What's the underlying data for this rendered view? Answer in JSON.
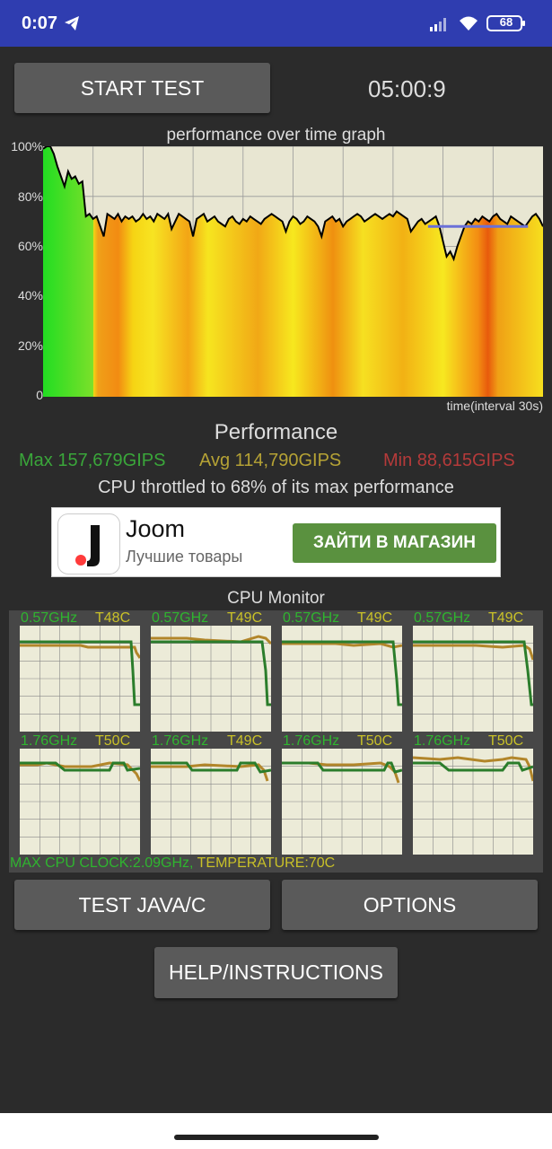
{
  "status_bar": {
    "time": "0:07",
    "battery": "68"
  },
  "buttons": {
    "start_test": "START TEST",
    "test_java_c": "TEST JAVA/C",
    "options": "OPTIONS",
    "help": "HELP/INSTRUCTIONS"
  },
  "timer": "05:00:9",
  "graph": {
    "title": "performance over time graph",
    "y_ticks": [
      "100%",
      "80%",
      "60%",
      "40%",
      "20%",
      "0"
    ],
    "x_label": "time(interval 30s)"
  },
  "chart_data": {
    "type": "line",
    "title": "performance over time graph",
    "xlabel": "time(interval 30s)",
    "ylabel": "",
    "ylim": [
      0,
      100
    ],
    "y_ticks": [
      0,
      20,
      40,
      60,
      80,
      100
    ],
    "grid": true,
    "series": [
      {
        "name": "",
        "values": [
          99,
          100,
          100,
          97,
          92,
          88,
          84,
          90,
          87,
          88,
          85,
          86,
          72,
          73,
          71,
          72,
          68,
          64,
          73,
          72,
          71,
          73,
          70,
          72,
          71,
          72,
          70,
          71,
          73,
          71,
          72,
          70,
          73,
          72,
          71,
          73,
          67,
          70,
          73,
          72,
          71,
          70,
          64,
          71,
          72,
          73,
          70,
          71,
          72,
          70,
          69,
          68,
          71,
          72,
          70,
          69,
          71,
          70,
          72,
          71,
          70,
          69,
          71,
          72,
          73,
          72,
          71,
          70,
          66,
          70,
          72,
          71,
          69,
          70,
          72,
          71,
          70,
          68,
          64,
          70,
          71,
          72,
          70,
          71,
          68,
          70,
          71,
          72,
          73,
          72,
          70,
          71,
          72,
          73,
          72,
          71,
          72,
          73,
          72,
          74,
          73,
          72,
          71,
          66,
          68,
          70,
          71,
          69,
          70,
          71,
          72,
          68,
          62,
          56,
          58,
          55,
          60,
          64,
          68,
          70,
          69,
          71,
          70,
          72,
          71,
          70,
          72,
          73,
          71,
          70,
          69,
          72,
          71,
          70,
          69,
          68,
          70,
          72,
          73,
          71,
          68
        ]
      }
    ],
    "average_line_value": 68
  },
  "performance": {
    "title": "Performance",
    "max": "Max 157,679GIPS",
    "avg": "Avg 114,790GIPS",
    "min": "Min 88,615GIPS",
    "throttle": "CPU throttled to 68% of its max performance"
  },
  "ad": {
    "name": "Joom",
    "subtitle": "Лучшие товары",
    "button": "ЗАЙТИ В МАГАЗИН"
  },
  "cpu_monitor": {
    "title": "CPU Monitor",
    "cores": [
      {
        "freq": "0.57GHz",
        "temp": "T48C"
      },
      {
        "freq": "0.57GHz",
        "temp": "T49C"
      },
      {
        "freq": "0.57GHz",
        "temp": "T49C"
      },
      {
        "freq": "0.57GHz",
        "temp": "T49C"
      },
      {
        "freq": "1.76GHz",
        "temp": "T50C"
      },
      {
        "freq": "1.76GHz",
        "temp": "T49C"
      },
      {
        "freq": "1.76GHz",
        "temp": "T50C"
      },
      {
        "freq": "1.76GHz",
        "temp": "T50C"
      }
    ],
    "max_clock": "MAX CPU CLOCK:2.09GHz,",
    "temperature": " TEMPERATURE:70C"
  },
  "colors": {
    "status_bar": "#2f3db0",
    "background": "#2b2b2b",
    "max_color": "#3aa63a",
    "avg_color": "#b5a235",
    "min_color": "#b53a3a",
    "ad_button": "#5a913f"
  }
}
